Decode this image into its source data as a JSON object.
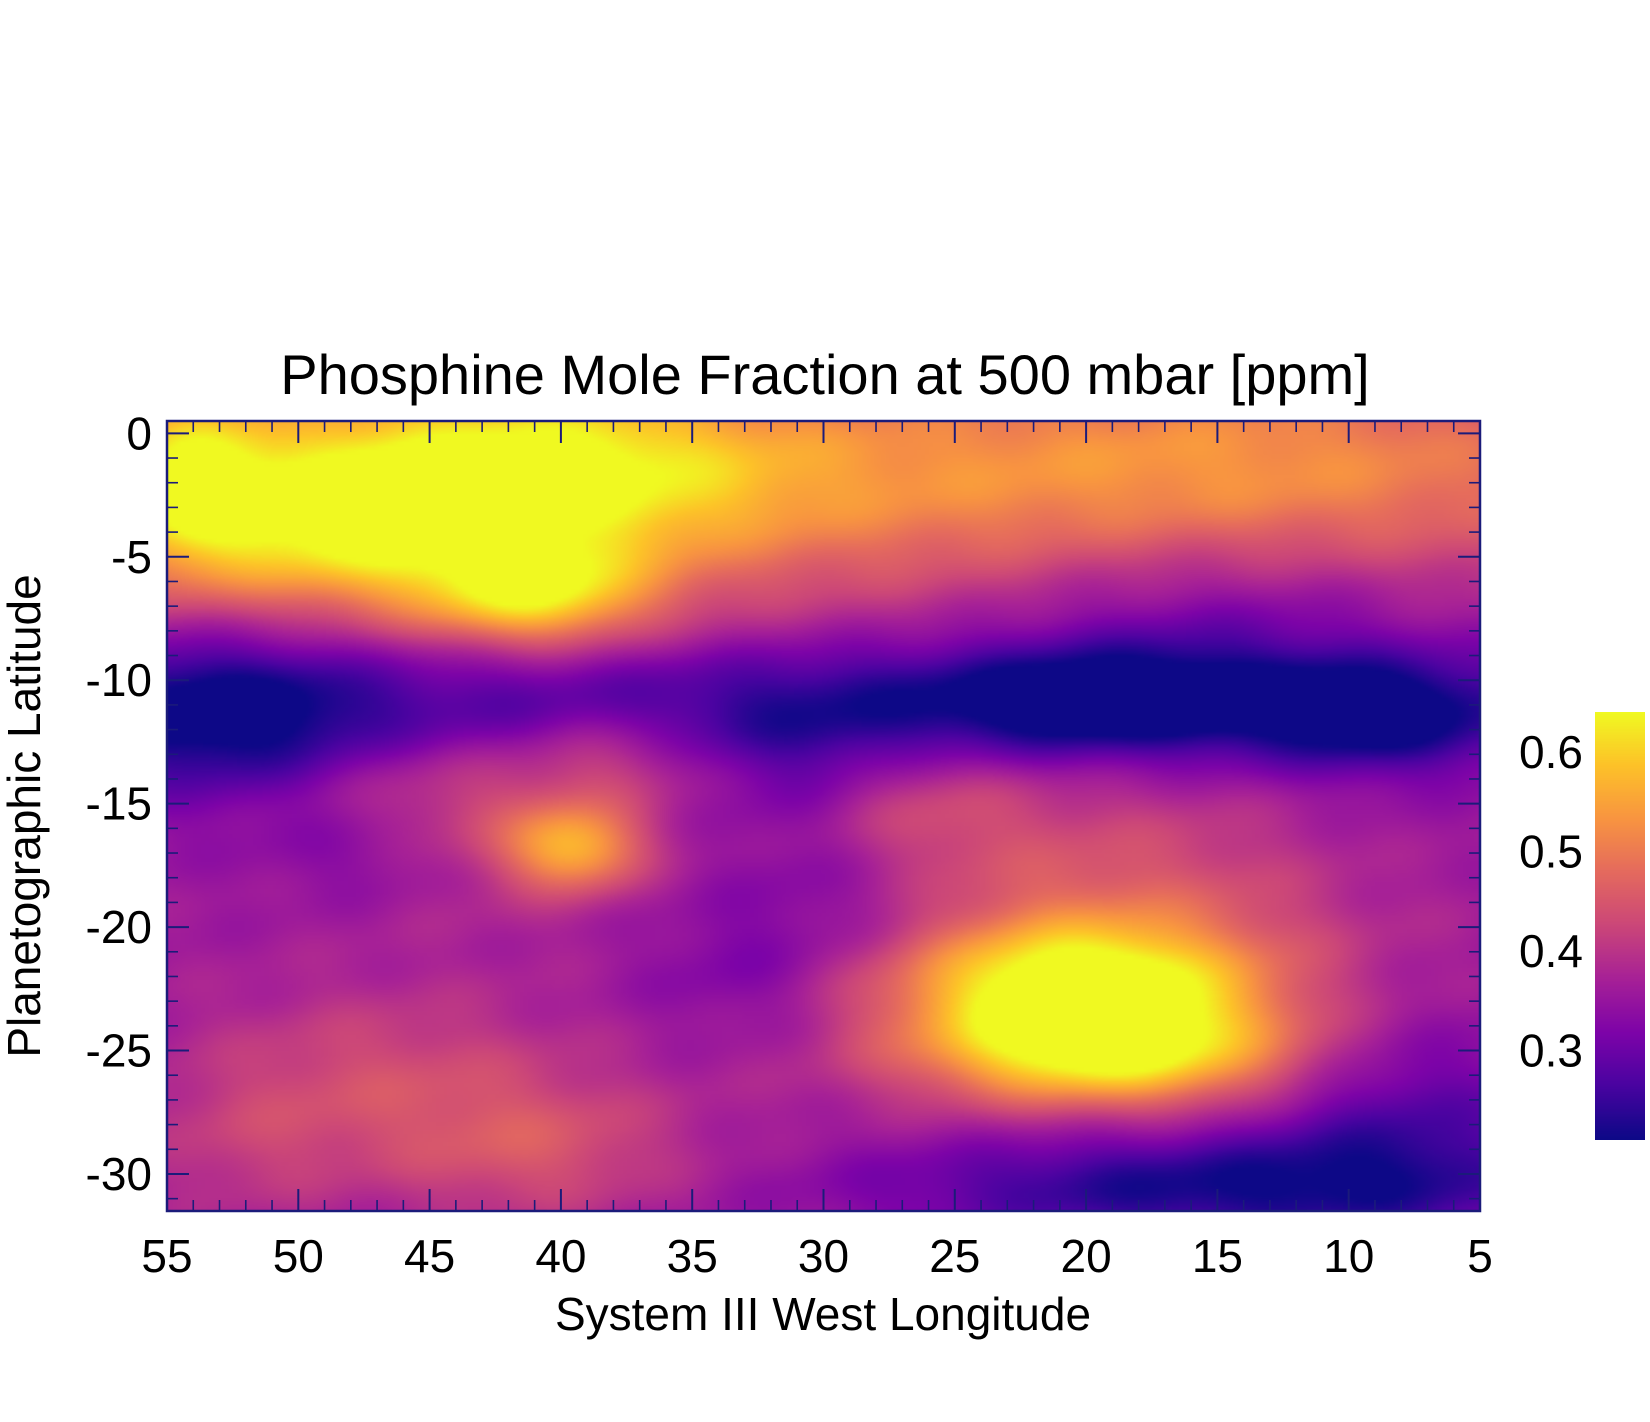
{
  "chart_data": {
    "type": "heatmap",
    "title": "Phosphine Mole Fraction at 500 mbar [ppm]",
    "xlabel": "System III West Longitude",
    "ylabel": "Planetographic Latitude",
    "xlim": [
      55,
      5
    ],
    "ylim": [
      -31.5,
      0.5
    ],
    "x_ticks": [
      55,
      50,
      45,
      40,
      35,
      30,
      25,
      20,
      15,
      10,
      5
    ],
    "x_tick_labels": [
      "55",
      "50",
      "45",
      "40",
      "35",
      "30",
      "25",
      "20",
      "15",
      "10",
      "5"
    ],
    "y_ticks": [
      0,
      -5,
      -10,
      -15,
      -20,
      -25,
      -30
    ],
    "y_tick_labels": [
      "0",
      "-5",
      "-10",
      "-15",
      "-20",
      "-25",
      "-30"
    ],
    "colorbar": {
      "min": 0.21,
      "max": 0.64,
      "ticks": [
        0.3,
        0.4,
        0.5,
        0.6
      ],
      "tick_labels": [
        "0.3",
        "0.4",
        "0.5",
        "0.6"
      ],
      "colormap": "plasma"
    },
    "background_value": 0.36,
    "features": [
      {
        "lon": 50,
        "lat": -2.5,
        "value": 0.48,
        "sigma_lon": 14,
        "sigma_lat": 3.5
      },
      {
        "lon": 41,
        "lat": -1.5,
        "value": 0.5,
        "sigma_lon": 6,
        "sigma_lat": 2.5
      },
      {
        "lon": 28,
        "lat": -1.5,
        "value": 0.47,
        "sigma_lon": 20,
        "sigma_lat": 3.5
      },
      {
        "lon": 12,
        "lat": -1.5,
        "value": 0.45,
        "sigma_lon": 10,
        "sigma_lat": 3.5
      },
      {
        "lon": 41,
        "lat": -6.5,
        "value": 0.56,
        "sigma_lon": 3,
        "sigma_lat": 1.5
      },
      {
        "lon": 48,
        "lat": -4,
        "value": 0.49,
        "sigma_lon": 4,
        "sigma_lat": 2.2
      },
      {
        "lon": 54,
        "lat": -2,
        "value": 0.5,
        "sigma_lon": 2,
        "sigma_lat": 2.5
      },
      {
        "lon": 30,
        "lat": -11,
        "value": 0.25,
        "sigma_lon": 30,
        "sigma_lat": 1.8
      },
      {
        "lon": 53,
        "lat": -11.5,
        "value": 0.24,
        "sigma_lon": 4,
        "sigma_lat": 2.5
      },
      {
        "lon": 19,
        "lat": -10.8,
        "value": 0.23,
        "sigma_lon": 5,
        "sigma_lat": 1.5
      },
      {
        "lon": 9,
        "lat": -11.5,
        "value": 0.25,
        "sigma_lon": 3,
        "sigma_lat": 1.5
      },
      {
        "lon": 15,
        "lat": -7,
        "value": 0.29,
        "sigma_lon": 6,
        "sigma_lat": 2.5
      },
      {
        "lon": 30,
        "lat": -14,
        "value": 0.29,
        "sigma_lon": 3,
        "sigma_lat": 2.5
      },
      {
        "lon": 39.5,
        "lat": -16.8,
        "value": 0.54,
        "sigma_lon": 1.8,
        "sigma_lat": 1.2
      },
      {
        "lon": 44,
        "lat": -15.5,
        "value": 0.44,
        "sigma_lon": 4,
        "sigma_lat": 2.5
      },
      {
        "lon": 38,
        "lat": -13,
        "value": 0.43,
        "sigma_lon": 2.5,
        "sigma_lat": 1.5
      },
      {
        "lon": 27,
        "lat": -15,
        "value": 0.43,
        "sigma_lon": 3,
        "sigma_lat": 2
      },
      {
        "lon": 20,
        "lat": -20,
        "value": 0.47,
        "sigma_lon": 8,
        "sigma_lat": 4
      },
      {
        "lon": 20,
        "lat": -22.5,
        "value": 0.62,
        "sigma_lon": 4.5,
        "sigma_lat": 1.8
      },
      {
        "lon": 19,
        "lat": -25.2,
        "value": 0.58,
        "sigma_lon": 5,
        "sigma_lat": 1.5
      },
      {
        "lon": 47,
        "lat": -17,
        "value": 0.3,
        "sigma_lon": 3,
        "sigma_lat": 1.5
      },
      {
        "lon": 29,
        "lat": -19,
        "value": 0.3,
        "sigma_lon": 4,
        "sigma_lat": 2
      },
      {
        "lon": 33,
        "lat": -22,
        "value": 0.31,
        "sigma_lon": 3,
        "sigma_lat": 2
      },
      {
        "lon": 16,
        "lat": -30.5,
        "value": 0.22,
        "sigma_lon": 8,
        "sigma_lat": 1.5
      },
      {
        "lon": 8,
        "lat": -28,
        "value": 0.27,
        "sigma_lon": 4,
        "sigma_lat": 3
      },
      {
        "lon": 47,
        "lat": -26,
        "value": 0.43,
        "sigma_lon": 5,
        "sigma_lat": 2.5
      },
      {
        "lon": 41,
        "lat": -29,
        "value": 0.44,
        "sigma_lon": 4,
        "sigma_lat": 2
      },
      {
        "lon": 52,
        "lat": -29,
        "value": 0.4,
        "sigma_lon": 3,
        "sigma_lat": 2
      },
      {
        "lon": 9,
        "lat": -17,
        "value": 0.34,
        "sigma_lon": 4,
        "sigma_lat": 4
      }
    ]
  }
}
